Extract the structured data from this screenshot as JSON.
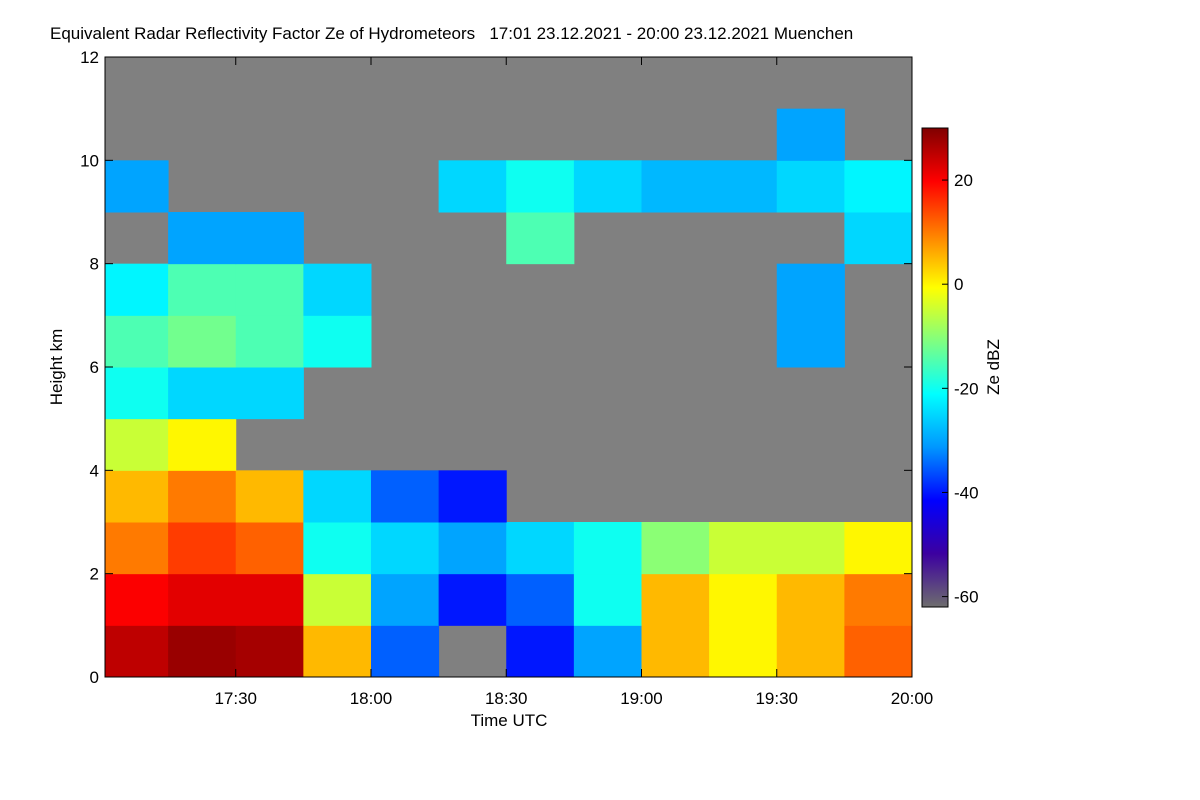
{
  "chart_data": {
    "type": "heatmap",
    "title": "Equivalent Radar Reflectivity Factor Ze of Hydrometeors   17:01 23.12.2021 - 20:00 23.12.2021 Muenchen",
    "xlabel": "Time UTC",
    "ylabel": "Height km",
    "colorbar_label": "Ze dBZ",
    "xlim": [
      17.0167,
      20.0
    ],
    "xticks": [
      {
        "value": 17.5,
        "label": "17:30"
      },
      {
        "value": 18.0,
        "label": "18:00"
      },
      {
        "value": 18.5,
        "label": "18:30"
      },
      {
        "value": 19.0,
        "label": "19:00"
      },
      {
        "value": 19.5,
        "label": "19:30"
      },
      {
        "value": 20.0,
        "label": "20:00"
      }
    ],
    "ylim": [
      0,
      12
    ],
    "yticks": [
      0,
      2,
      4,
      6,
      8,
      10,
      12
    ],
    "clim": [
      -62,
      30
    ],
    "cticks": [
      20,
      0,
      -20,
      -40,
      -60
    ],
    "colorscale": [
      "#6e6e6e",
      "#3c00a0",
      "#0000ff",
      "#0096ff",
      "#00ffff",
      "#80ff80",
      "#ffff00",
      "#ff8000",
      "#ff0000",
      "#800000"
    ],
    "missing_color": "#808080",
    "xbins": [
      17.0167,
      17.25,
      17.5,
      17.75,
      18.0,
      18.25,
      18.5,
      18.75,
      19.0,
      19.25,
      19.5,
      19.75,
      20.0
    ],
    "ybins": [
      0,
      1,
      2,
      3,
      4,
      5,
      6,
      7,
      8,
      9,
      10,
      11,
      12
    ],
    "z": [
      [
        25,
        28,
        27,
        5,
        -35,
        null,
        -40,
        -30,
        5,
        0,
        5,
        12
      ],
      [
        20,
        22,
        22,
        -5,
        -30,
        -40,
        -35,
        -20,
        5,
        0,
        5,
        10
      ],
      [
        10,
        15,
        12,
        -20,
        -25,
        -30,
        -25,
        -20,
        -10,
        -5,
        -5,
        0
      ],
      [
        5,
        10,
        5,
        -25,
        -35,
        -40,
        null,
        null,
        null,
        null,
        null,
        null
      ],
      [
        -5,
        0,
        null,
        null,
        null,
        null,
        null,
        null,
        null,
        null,
        null,
        null
      ],
      [
        -20,
        -25,
        -25,
        null,
        null,
        null,
        null,
        null,
        null,
        null,
        null,
        null
      ],
      [
        -15,
        -12,
        -15,
        -20,
        null,
        null,
        null,
        null,
        null,
        null,
        -30,
        null
      ],
      [
        -22,
        -15,
        -15,
        -25,
        null,
        null,
        null,
        null,
        null,
        null,
        -30,
        null
      ],
      [
        null,
        -30,
        -30,
        null,
        null,
        null,
        -15,
        null,
        null,
        null,
        null,
        -25
      ],
      [
        -30,
        null,
        null,
        null,
        null,
        -25,
        -20,
        -25,
        -28,
        -28,
        -25,
        -22
      ],
      [
        null,
        null,
        null,
        null,
        null,
        null,
        null,
        null,
        null,
        null,
        -30,
        null
      ],
      [
        null,
        null,
        null,
        null,
        null,
        null,
        null,
        null,
        null,
        null,
        null,
        null
      ]
    ]
  }
}
